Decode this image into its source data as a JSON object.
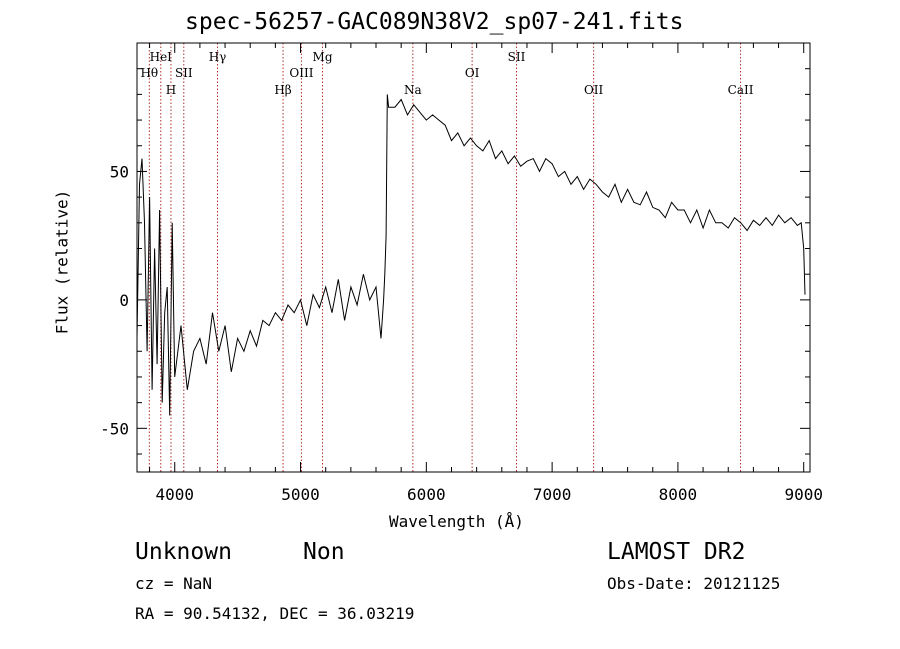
{
  "chart_data": {
    "type": "line",
    "title": "spec-56257-GAC089N38V2_sp07-241.fits",
    "xlabel": "Wavelength (Å)",
    "ylabel": "Flux (relative)",
    "xlim": [
      3700,
      9050
    ],
    "ylim": [
      -67,
      100
    ],
    "xticks": [
      4000,
      5000,
      6000,
      7000,
      8000,
      9000
    ],
    "yticks": [
      -50,
      0,
      50
    ],
    "grid": false,
    "line_color": "#000000",
    "marker_color": "#b03030",
    "series": [
      {
        "x": [
          3700,
          3720,
          3740,
          3760,
          3780,
          3800,
          3820,
          3840,
          3860,
          3880,
          3900,
          3920,
          3940,
          3960,
          3980,
          4000,
          4050,
          4100,
          4150,
          4200,
          4250,
          4300,
          4350,
          4400,
          4450,
          4500,
          4550,
          4600,
          4650,
          4700,
          4750,
          4800,
          4850,
          4900,
          4950,
          5000,
          5050,
          5100,
          5150,
          5200,
          5250,
          5300,
          5350,
          5400,
          5450,
          5500,
          5550,
          5600,
          5640,
          5660,
          5670,
          5680,
          5690,
          5700,
          5750,
          5800,
          5850,
          5900,
          5950,
          6000,
          6050,
          6100,
          6150,
          6200,
          6250,
          6300,
          6350,
          6400,
          6450,
          6500,
          6550,
          6600,
          6650,
          6700,
          6750,
          6800,
          6850,
          6900,
          6950,
          7000,
          7050,
          7100,
          7150,
          7200,
          7250,
          7300,
          7350,
          7400,
          7450,
          7500,
          7550,
          7600,
          7650,
          7700,
          7750,
          7800,
          7850,
          7900,
          7950,
          8000,
          8050,
          8100,
          8150,
          8200,
          8250,
          8300,
          8350,
          8400,
          8450,
          8500,
          8550,
          8600,
          8650,
          8700,
          8750,
          8800,
          8850,
          8900,
          8950,
          8980,
          9000,
          9010
        ],
        "y": [
          -15,
          45,
          55,
          30,
          -20,
          40,
          -35,
          20,
          -25,
          35,
          -40,
          -5,
          5,
          -45,
          30,
          -30,
          -10,
          -35,
          -20,
          -15,
          -25,
          -5,
          -20,
          -10,
          -28,
          -15,
          -20,
          -12,
          -18,
          -8,
          -10,
          -5,
          -8,
          -2,
          -5,
          0,
          -10,
          2,
          -3,
          5,
          -5,
          8,
          -8,
          5,
          -2,
          10,
          0,
          5,
          -15,
          0,
          10,
          25,
          80,
          75,
          75,
          78,
          72,
          76,
          73,
          70,
          72,
          70,
          68,
          62,
          65,
          60,
          63,
          60,
          58,
          62,
          55,
          58,
          53,
          56,
          52,
          54,
          55,
          50,
          55,
          53,
          48,
          50,
          45,
          48,
          43,
          47,
          45,
          42,
          40,
          45,
          38,
          43,
          38,
          37,
          42,
          36,
          35,
          32,
          38,
          35,
          35,
          30,
          35,
          28,
          35,
          30,
          30,
          28,
          32,
          30,
          27,
          31,
          29,
          32,
          29,
          33,
          30,
          32,
          29,
          30,
          20,
          2
        ]
      }
    ],
    "annotations": [
      {
        "label": "HeI",
        "x": 3889,
        "row": 0
      },
      {
        "label": "Hγ",
        "x": 4340,
        "row": 0
      },
      {
        "label": "Mg",
        "x": 5175,
        "row": 0
      },
      {
        "label": "SII",
        "x": 6717,
        "row": 0
      },
      {
        "label": "Hθ",
        "x": 3798,
        "row": 1
      },
      {
        "label": "SII",
        "x": 4072,
        "row": 1
      },
      {
        "label": "OIII",
        "x": 5007,
        "row": 1
      },
      {
        "label": "OI",
        "x": 6364,
        "row": 1
      },
      {
        "label": "H",
        "x": 3970,
        "row": 2
      },
      {
        "label": "Hβ",
        "x": 4861,
        "row": 2
      },
      {
        "label": "Na",
        "x": 5893,
        "row": 2
      },
      {
        "label": "OII",
        "x": 7330,
        "row": 2
      },
      {
        "label": "CaII",
        "x": 8498,
        "row": 2
      }
    ]
  },
  "info": {
    "object_class": "Unknown",
    "subclass": "Non",
    "survey": "LAMOST DR2",
    "cz": "cz = NaN",
    "obs_date": "Obs-Date: 20121125",
    "coords": "RA =  90.54132, DEC =  36.03219"
  }
}
